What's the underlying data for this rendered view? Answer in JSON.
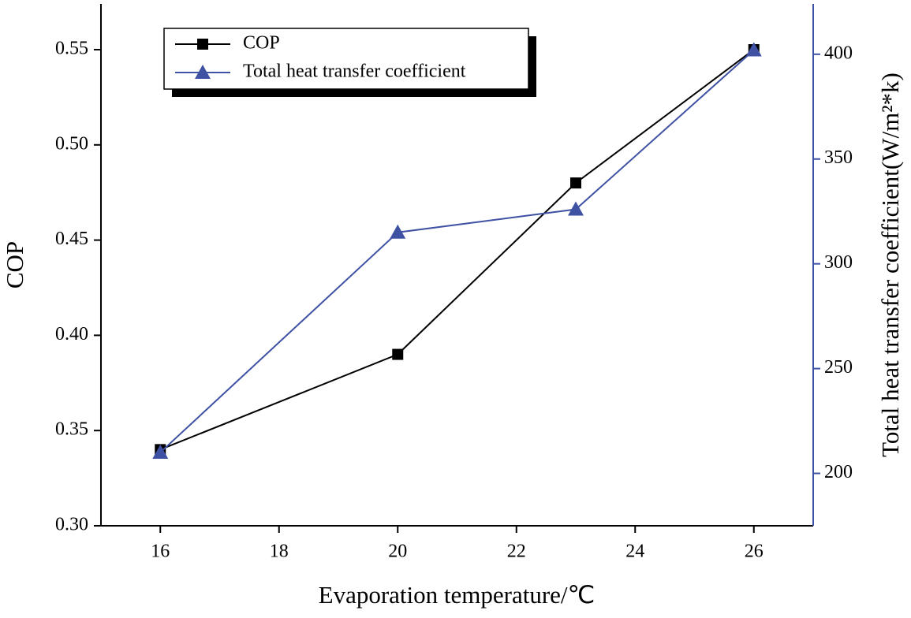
{
  "chart_data": {
    "type": "line",
    "x_label": "Evaporation temperature/℃",
    "y_label": "COP",
    "y2_label": "Total heat transfer coefficient(W/m²*k)",
    "x": [
      16,
      20,
      23,
      26
    ],
    "series": [
      {
        "name": "COP",
        "color": "#000000",
        "marker": "square",
        "values": [
          0.34,
          0.39,
          0.48,
          0.55
        ]
      },
      {
        "name": "Total heat transfer coefficient",
        "color": "#3f51a3",
        "marker": "triangle",
        "axis": "y2",
        "values": [
          210,
          315,
          326,
          402
        ]
      }
    ],
    "xlim": [
      15,
      27
    ],
    "xticks": [
      16,
      18,
      20,
      22,
      24,
      26
    ],
    "ylim": [
      0.3,
      0.574
    ],
    "yticks": [
      {
        "value": 0.3,
        "label": "0.30"
      },
      0.35,
      {
        "value": 0.4,
        "label": "0.40"
      },
      0.45,
      {
        "value": 0.5,
        "label": "0.50"
      },
      0.55
    ],
    "y2lim": [
      175,
      424
    ],
    "y2ticks": [
      200,
      250,
      300,
      350,
      400
    ],
    "legend": "upper left"
  }
}
